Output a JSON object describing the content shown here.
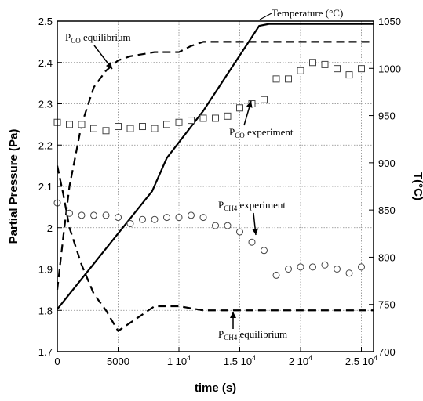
{
  "chart_data": {
    "type": "line",
    "xlabel": "time (s)",
    "ylabel_left": "Partial Pressure (Pa)",
    "ylabel_right": "T(°C)",
    "xlim": [
      0,
      26000
    ],
    "ylim_left": [
      1.7,
      2.5
    ],
    "ylim_right": [
      700,
      1050
    ],
    "grid": true,
    "x_tick_values": [
      0,
      5000,
      10000,
      15000,
      20000,
      25000
    ],
    "x_tick_labels": [
      "0",
      "5000",
      "1 10",
      "1.5 10",
      "2 10",
      "2.5 10"
    ],
    "x_tick_exponent": "4",
    "y_left_tick_labels": [
      "1.7",
      "1.8",
      "1.9",
      "2",
      "2.1",
      "2.2",
      "2.3",
      "2.4",
      "2.5"
    ],
    "y_right_tick_labels": [
      "700",
      "750",
      "800",
      "850",
      "900",
      "950",
      "1000",
      "1050"
    ],
    "series": [
      {
        "name": "Temperature (°C)",
        "axis": "right",
        "style": "solid",
        "x": [
          0,
          7800,
          9000,
          12000,
          16600,
          17400,
          26000
        ],
        "y": [
          745,
          870,
          905,
          955,
          1045,
          1047,
          1047
        ]
      },
      {
        "name": "PCO equilibrium",
        "axis": "left",
        "style": "dashed",
        "x": [
          0,
          500,
          1000,
          2000,
          3000,
          4000,
          5000,
          6000,
          8000,
          9000,
          10000,
          11000,
          12000,
          14000,
          18000,
          26000
        ],
        "y": [
          1.85,
          1.98,
          2.1,
          2.25,
          2.34,
          2.38,
          2.405,
          2.415,
          2.425,
          2.425,
          2.425,
          2.44,
          2.45,
          2.45,
          2.45,
          2.45
        ]
      },
      {
        "name": "PCH4 equilibrium",
        "axis": "left",
        "style": "dashed",
        "x": [
          0,
          500,
          1000,
          2000,
          3000,
          4000,
          5000,
          6000,
          8000,
          10000,
          12000,
          14000,
          18000,
          26000
        ],
        "y": [
          2.15,
          2.08,
          2.0,
          1.91,
          1.84,
          1.8,
          1.75,
          1.77,
          1.81,
          1.81,
          1.8,
          1.8,
          1.8,
          1.8
        ]
      },
      {
        "name": "PCO experiment",
        "axis": "left",
        "style": "square-markers",
        "x": [
          0,
          1000,
          2000,
          3000,
          4000,
          5000,
          6000,
          7000,
          8000,
          9000,
          10000,
          11000,
          12000,
          13000,
          14000,
          15000,
          16000,
          17000,
          18000,
          19000,
          20000,
          21000,
          22000,
          23000,
          24000,
          25000
        ],
        "y": [
          2.255,
          2.25,
          2.25,
          2.24,
          2.235,
          2.245,
          2.24,
          2.245,
          2.24,
          2.25,
          2.255,
          2.26,
          2.265,
          2.265,
          2.27,
          2.29,
          2.3,
          2.31,
          2.36,
          2.36,
          2.38,
          2.4,
          2.395,
          2.385,
          2.37,
          2.385
        ]
      },
      {
        "name": "PCH4 experiment",
        "axis": "left",
        "style": "circle-markers",
        "x": [
          0,
          1000,
          2000,
          3000,
          4000,
          5000,
          6000,
          7000,
          8000,
          9000,
          10000,
          11000,
          12000,
          13000,
          14000,
          15000,
          16000,
          17000,
          18000,
          19000,
          20000,
          21000,
          22000,
          23000,
          24000,
          25000
        ],
        "y": [
          2.06,
          2.035,
          2.03,
          2.03,
          2.03,
          2.025,
          2.01,
          2.02,
          2.02,
          2.025,
          2.025,
          2.03,
          2.025,
          2.005,
          2.005,
          1.99,
          1.965,
          1.945,
          1.885,
          1.9,
          1.905,
          1.905,
          1.91,
          1.9,
          1.89,
          1.905
        ]
      }
    ],
    "annotations": [
      {
        "id": "temp",
        "text": "Temperature (°C)",
        "sub": ""
      },
      {
        "id": "pco_eq",
        "text": "P",
        "sub": "CO",
        "rest": " equilibrium"
      },
      {
        "id": "pco_exp",
        "text": "P",
        "sub": "CO",
        "rest": " experiment"
      },
      {
        "id": "pch4_exp",
        "text": "P",
        "sub": "CH4",
        "rest": " experiment"
      },
      {
        "id": "pch4_eq",
        "text": "P",
        "sub": "CH4",
        "rest": " equilibrium"
      }
    ]
  }
}
